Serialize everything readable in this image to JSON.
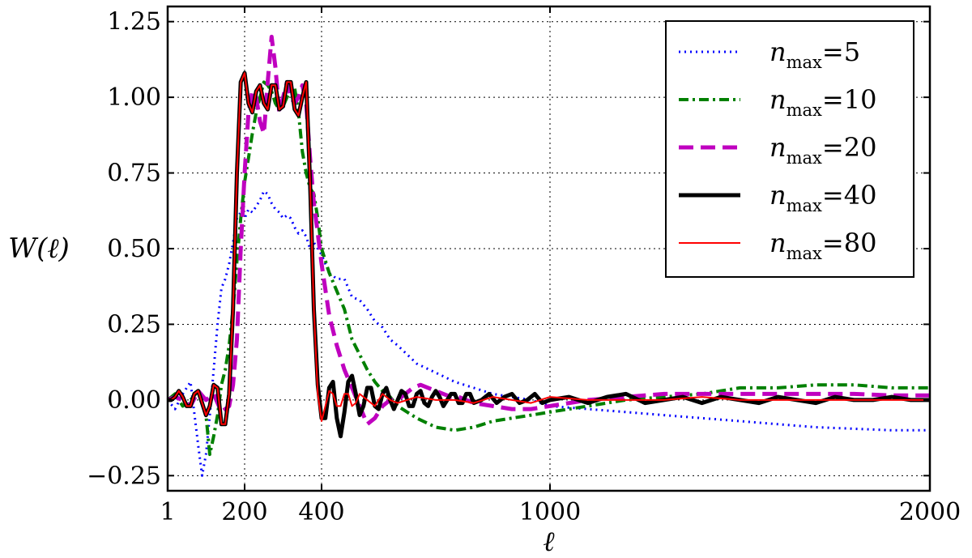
{
  "chart_data": {
    "type": "line",
    "title": "",
    "xlabel": "ℓ",
    "ylabel": "W(ℓ)",
    "xlim": [
      1,
      2000
    ],
    "ylim": [
      -0.3,
      1.3
    ],
    "x_scale": "piecewise",
    "x_axis_ticks": [
      {
        "value": 1,
        "label": "1"
      },
      {
        "value": 200,
        "label": "200"
      },
      {
        "value": 400,
        "label": "400"
      },
      {
        "value": 1000,
        "label": "1000"
      },
      {
        "value": 2000,
        "label": "2000"
      }
    ],
    "y_axis_ticks": [
      {
        "value": -0.25,
        "label": "−0.25"
      },
      {
        "value": 0.0,
        "label": "0.00"
      },
      {
        "value": 0.25,
        "label": "0.25"
      },
      {
        "value": 0.5,
        "label": "0.50"
      },
      {
        "value": 0.75,
        "label": "0.75"
      },
      {
        "value": 1.0,
        "label": "1.00"
      },
      {
        "value": 1.25,
        "label": "1.25"
      }
    ],
    "grid": true,
    "legend_position": "top-right",
    "series": [
      {
        "name": "n_max = 5",
        "legend_prefix": "n",
        "legend_sub": "max",
        "legend_value": "=5",
        "color": "#0000ff",
        "style": "dotted",
        "x": [
          1,
          20,
          40,
          60,
          80,
          90,
          100,
          110,
          120,
          130,
          140,
          150,
          160,
          170,
          180,
          190,
          200,
          210,
          220,
          230,
          240,
          250,
          260,
          270,
          280,
          290,
          300,
          310,
          320,
          330,
          340,
          350,
          360,
          370,
          380,
          390,
          400,
          420,
          440,
          460,
          480,
          500,
          520,
          540,
          560,
          580,
          600,
          650,
          700,
          750,
          800,
          850,
          900,
          950,
          1000,
          1100,
          1200,
          1300,
          1400,
          1500,
          1600,
          1700,
          1800,
          1900,
          2000
        ],
        "y": [
          0.0,
          -0.03,
          0.02,
          0.06,
          -0.15,
          -0.25,
          -0.18,
          -0.05,
          0.1,
          0.25,
          0.37,
          0.4,
          0.45,
          0.52,
          0.6,
          0.62,
          0.6,
          0.63,
          0.62,
          0.64,
          0.66,
          0.69,
          0.68,
          0.65,
          0.63,
          0.62,
          0.6,
          0.61,
          0.6,
          0.57,
          0.55,
          0.56,
          0.54,
          0.5,
          0.52,
          0.5,
          0.48,
          0.42,
          0.4,
          0.4,
          0.34,
          0.33,
          0.3,
          0.26,
          0.24,
          0.2,
          0.18,
          0.12,
          0.09,
          0.06,
          0.04,
          0.02,
          0.01,
          0.0,
          -0.02,
          -0.03,
          -0.04,
          -0.05,
          -0.06,
          -0.07,
          -0.08,
          -0.09,
          -0.095,
          -0.1,
          -0.1
        ]
      },
      {
        "name": "n_max = 10",
        "legend_prefix": "n",
        "legend_sub": "max",
        "legend_value": "=10",
        "color": "#008000",
        "style": "dashdot",
        "x": [
          1,
          20,
          40,
          60,
          80,
          100,
          110,
          120,
          130,
          140,
          150,
          160,
          170,
          180,
          190,
          200,
          210,
          220,
          230,
          240,
          250,
          260,
          270,
          280,
          290,
          300,
          310,
          320,
          330,
          340,
          350,
          360,
          370,
          380,
          390,
          400,
          420,
          440,
          460,
          480,
          500,
          520,
          540,
          560,
          580,
          600,
          650,
          700,
          750,
          800,
          850,
          900,
          950,
          1000,
          1100,
          1200,
          1300,
          1400,
          1500,
          1600,
          1700,
          1800,
          1900,
          2000
        ],
        "y": [
          0.0,
          0.02,
          -0.02,
          0.0,
          0.03,
          -0.05,
          -0.18,
          -0.12,
          -0.05,
          0.05,
          0.1,
          0.18,
          0.3,
          0.46,
          0.6,
          0.72,
          0.8,
          0.88,
          0.95,
          1.0,
          1.05,
          1.04,
          1.02,
          0.98,
          0.96,
          0.97,
          1.0,
          1.02,
          1.03,
          0.95,
          0.82,
          0.75,
          0.7,
          0.68,
          0.6,
          0.5,
          0.42,
          0.36,
          0.3,
          0.2,
          0.15,
          0.1,
          0.06,
          0.03,
          0.01,
          -0.02,
          -0.06,
          -0.09,
          -0.1,
          -0.09,
          -0.07,
          -0.06,
          -0.05,
          -0.04,
          -0.02,
          0.0,
          0.01,
          0.02,
          0.04,
          0.04,
          0.05,
          0.05,
          0.04,
          0.04
        ]
      },
      {
        "name": "n_max = 20",
        "legend_prefix": "n",
        "legend_sub": "max",
        "legend_value": "=20",
        "color": "#bf00bf",
        "style": "dashed",
        "x": [
          1,
          20,
          40,
          60,
          80,
          100,
          120,
          140,
          160,
          170,
          180,
          190,
          200,
          210,
          220,
          230,
          240,
          250,
          260,
          270,
          280,
          290,
          300,
          310,
          320,
          330,
          340,
          350,
          360,
          370,
          380,
          390,
          400,
          420,
          440,
          460,
          480,
          500,
          520,
          540,
          560,
          580,
          600,
          620,
          640,
          660,
          680,
          700,
          720,
          740,
          760,
          780,
          800,
          850,
          900,
          950,
          1000,
          1100,
          1200,
          1300,
          1400,
          1500,
          1600,
          1700,
          1800,
          1900,
          2000
        ],
        "y": [
          0.0,
          0.01,
          0.0,
          -0.02,
          0.03,
          0.0,
          0.02,
          -0.04,
          -0.02,
          0.05,
          0.2,
          0.5,
          0.75,
          0.95,
          1.02,
          1.0,
          0.92,
          0.88,
          1.05,
          1.2,
          1.1,
          0.95,
          1.0,
          1.05,
          1.0,
          0.98,
          1.0,
          1.04,
          0.98,
          0.8,
          0.65,
          0.55,
          0.45,
          0.28,
          0.18,
          0.1,
          0.04,
          -0.02,
          -0.08,
          -0.06,
          -0.02,
          0.0,
          0.0,
          0.02,
          0.04,
          0.05,
          0.04,
          0.03,
          0.02,
          0.01,
          0.01,
          0.0,
          -0.01,
          -0.02,
          -0.03,
          -0.03,
          -0.02,
          0.0,
          0.01,
          0.02,
          0.02,
          0.02,
          0.02,
          0.02,
          0.02,
          0.015,
          0.015
        ]
      },
      {
        "name": "n_max = 40",
        "legend_prefix": "n",
        "legend_sub": "max",
        "legend_value": "=40",
        "color": "#000000",
        "style": "solid-thick",
        "x": [
          1,
          10,
          20,
          30,
          40,
          50,
          60,
          70,
          80,
          90,
          100,
          110,
          120,
          130,
          140,
          150,
          160,
          170,
          180,
          190,
          200,
          210,
          220,
          230,
          240,
          250,
          260,
          270,
          280,
          290,
          300,
          310,
          320,
          330,
          340,
          350,
          360,
          370,
          380,
          390,
          400,
          410,
          420,
          430,
          440,
          450,
          460,
          470,
          480,
          490,
          500,
          510,
          520,
          530,
          540,
          550,
          560,
          570,
          580,
          590,
          600,
          610,
          620,
          630,
          640,
          650,
          660,
          670,
          680,
          690,
          700,
          710,
          720,
          730,
          740,
          750,
          760,
          770,
          780,
          790,
          800,
          820,
          840,
          860,
          880,
          900,
          920,
          940,
          960,
          980,
          1000,
          1050,
          1100,
          1150,
          1200,
          1250,
          1300,
          1350,
          1400,
          1450,
          1500,
          1550,
          1600,
          1650,
          1700,
          1750,
          1800,
          1850,
          1900,
          1950,
          2000
        ],
        "y": [
          0.0,
          0.0,
          0.01,
          0.03,
          0.01,
          -0.02,
          -0.02,
          0.02,
          0.03,
          -0.01,
          -0.05,
          -0.02,
          0.05,
          0.04,
          -0.08,
          -0.08,
          0.02,
          0.3,
          0.75,
          1.05,
          1.08,
          0.98,
          0.95,
          1.02,
          1.04,
          0.98,
          0.96,
          1.04,
          1.04,
          0.96,
          0.97,
          1.05,
          1.05,
          0.96,
          0.94,
          1.0,
          1.05,
          0.72,
          0.3,
          0.05,
          -0.06,
          -0.06,
          0.04,
          0.06,
          -0.06,
          -0.12,
          -0.04,
          0.06,
          0.08,
          0.02,
          -0.05,
          -0.02,
          0.04,
          0.04,
          -0.02,
          -0.03,
          0.02,
          0.04,
          0.0,
          -0.03,
          0.0,
          0.03,
          0.02,
          -0.02,
          -0.02,
          0.02,
          0.03,
          -0.01,
          -0.02,
          0.01,
          0.03,
          0.01,
          -0.02,
          0.0,
          0.02,
          0.02,
          -0.01,
          -0.01,
          0.02,
          0.02,
          -0.01,
          0.0,
          0.02,
          -0.01,
          0.01,
          0.02,
          -0.01,
          0.0,
          0.02,
          -0.01,
          0.0,
          0.01,
          -0.01,
          0.01,
          0.02,
          -0.01,
          0.0,
          0.01,
          -0.01,
          0.01,
          0.0,
          -0.01,
          0.01,
          0.0,
          -0.01,
          0.01,
          0.0,
          0.0,
          0.01,
          0.0,
          0.0
        ]
      },
      {
        "name": "n_max = 80",
        "legend_prefix": "n",
        "legend_sub": "max",
        "legend_value": "=80",
        "color": "#ff0000",
        "style": "solid",
        "x": [
          1,
          10,
          20,
          30,
          40,
          50,
          60,
          70,
          80,
          90,
          100,
          110,
          120,
          130,
          140,
          150,
          160,
          170,
          180,
          190,
          200,
          210,
          220,
          230,
          240,
          250,
          260,
          270,
          280,
          290,
          300,
          310,
          320,
          330,
          340,
          350,
          360,
          370,
          380,
          390,
          400,
          410,
          420,
          430,
          440,
          450,
          460,
          470,
          480,
          490,
          500,
          520,
          540,
          560,
          580,
          600,
          650,
          700,
          750,
          800,
          850,
          900,
          950,
          1000,
          1100,
          1200,
          1300,
          1400,
          1500,
          1600,
          1700,
          1800,
          1900,
          2000
        ],
        "y": [
          0.0,
          0.0,
          0.01,
          0.03,
          0.01,
          -0.02,
          -0.02,
          0.02,
          0.03,
          -0.01,
          -0.05,
          -0.02,
          0.05,
          0.04,
          -0.08,
          -0.08,
          0.02,
          0.3,
          0.75,
          1.05,
          1.08,
          0.98,
          0.95,
          1.02,
          1.04,
          0.98,
          0.96,
          1.04,
          1.04,
          0.96,
          0.97,
          1.05,
          1.05,
          0.96,
          0.94,
          1.0,
          1.05,
          0.72,
          0.3,
          0.02,
          -0.07,
          -0.02,
          0.03,
          0.02,
          -0.02,
          -0.02,
          0.02,
          0.02,
          -0.02,
          -0.01,
          0.02,
          0.0,
          -0.02,
          0.02,
          0.0,
          -0.01,
          0.01,
          0.0,
          0.0,
          -0.01,
          0.01,
          0.0,
          -0.01,
          0.01,
          0.0,
          0.0,
          0.0,
          0.01,
          0.0,
          0.0,
          0.0,
          0.0,
          0.0,
          0.0
        ]
      }
    ]
  }
}
